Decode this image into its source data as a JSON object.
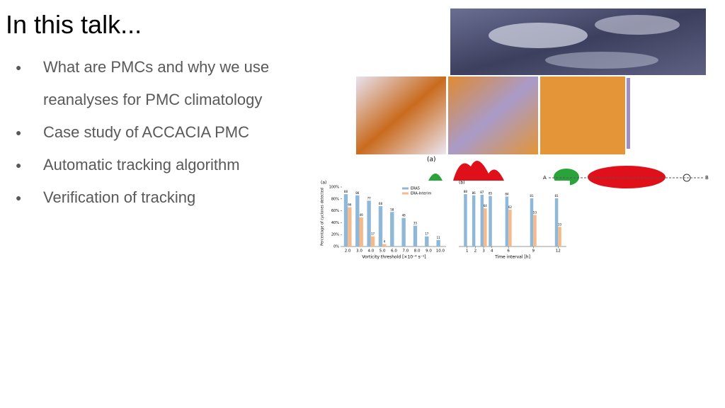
{
  "slide": {
    "title": "In this talk...",
    "bullets": [
      "What are PMCs and why we use reanalyses for PMC climatology",
      "Case study of ACCACIA PMC",
      "Automatic tracking algorithm",
      "Verification of tracking"
    ]
  },
  "figure_labels": {
    "cross_section_panel": "(a)",
    "point_a": "A",
    "point_b": "B"
  },
  "chart_data": [
    {
      "type": "bar",
      "panel": "(a)",
      "xlabel": "Vorticity threshold [×10⁻⁴ s⁻¹]",
      "ylabel": "Percentage of cyclones detected",
      "categories": [
        "2.0",
        "3.0",
        "4.0",
        "5.0",
        "6.0",
        "7.0",
        "8.0",
        "9.0",
        "10.0"
      ],
      "series": [
        {
          "name": "ERA5",
          "color": "#8fb8d8",
          "values": [
            88,
            86,
            77,
            68,
            58,
            48,
            35,
            17,
            11
          ]
        },
        {
          "name": "ERA-Interim",
          "color": "#f5b98a",
          "values": [
            66,
            49,
            17,
            4,
            null,
            null,
            null,
            null,
            null
          ]
        }
      ],
      "ylim": [
        0,
        100
      ],
      "yticks": [
        {
          "value": 0,
          "label": "0%"
        },
        {
          "value": 20,
          "label": "20%"
        },
        {
          "value": 40,
          "label": "40%"
        },
        {
          "value": 60,
          "label": "60%"
        },
        {
          "value": 80,
          "label": "80%"
        },
        {
          "value": 100,
          "label": "100%"
        }
      ]
    },
    {
      "type": "bar",
      "panel": "(b)",
      "xlabel": "Time interval [h]",
      "x": [
        1,
        2,
        3,
        4,
        6,
        9,
        12
      ],
      "xlim": [
        0,
        13
      ],
      "xticks": [
        1,
        2,
        3,
        4,
        6,
        9,
        12
      ],
      "series": [
        {
          "color": "#8fb8d8",
          "values": [
            88,
            86,
            87,
            85,
            84,
            81,
            81
          ]
        },
        {
          "color": "#f5b98a",
          "values": [
            null,
            null,
            64,
            null,
            62,
            53,
            33
          ]
        }
      ],
      "ylim": [
        0,
        100
      ]
    }
  ]
}
